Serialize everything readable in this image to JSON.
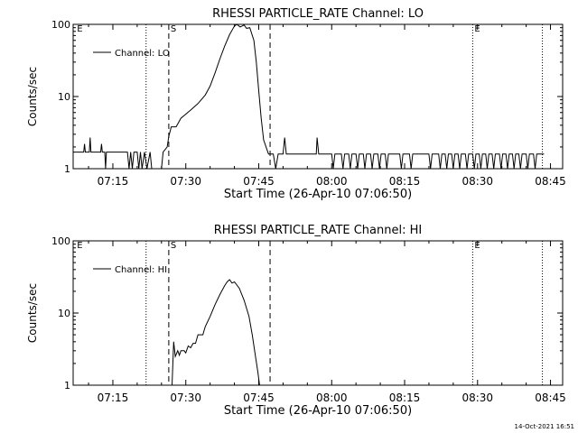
{
  "footer_timestamp": "14-Oct-2021 16:51",
  "chart_data": [
    {
      "type": "line",
      "title": "RHESSI PARTICLE_RATE Channel: LO",
      "xlabel": "Start Time (26-Apr-10 07:06:50)",
      "ylabel": "Counts/sec",
      "yscale": "log",
      "ylim": [
        1,
        100
      ],
      "ytick_labels": [
        "1",
        "10",
        "100"
      ],
      "xlim": [
        "07:06:50",
        "08:47:30"
      ],
      "xtick_labels": [
        "07:15",
        "07:30",
        "07:45",
        "08:00",
        "08:15",
        "08:30",
        "08:45"
      ],
      "legend": {
        "position": "top-left",
        "entries": [
          "Channel: LO"
        ]
      },
      "grid": false,
      "markers": [
        {
          "time": "07:08:00",
          "style": "label",
          "label": "E"
        },
        {
          "time": "07:21:50",
          "style": "dotted",
          "label": ""
        },
        {
          "time": "07:26:30",
          "style": "dashed",
          "label": "S"
        },
        {
          "time": "07:47:20",
          "style": "dashed",
          "label": ""
        },
        {
          "time": "08:29:00",
          "style": "dotted",
          "label": "E"
        },
        {
          "time": "08:43:20",
          "style": "dotted",
          "label": ""
        }
      ],
      "series": [
        {
          "name": "Channel: LO",
          "points": [
            [
              "07:06:50",
              1.7
            ],
            [
              "07:09:00",
              1.7
            ],
            [
              "07:09:10",
              2.2
            ],
            [
              "07:09:20",
              1.7
            ],
            [
              "07:10:10",
              1.7
            ],
            [
              "07:10:20",
              2.7
            ],
            [
              "07:10:30",
              1.7
            ],
            [
              "07:12:30",
              1.7
            ],
            [
              "07:12:40",
              2.2
            ],
            [
              "07:12:50",
              1.7
            ],
            [
              "07:13:20",
              1.7
            ],
            [
              "07:13:30",
              1.0
            ],
            [
              "07:13:40",
              1.7
            ],
            [
              "07:18:00",
              1.7
            ],
            [
              "07:18:20",
              1.0
            ],
            [
              "07:18:40",
              1.7
            ],
            [
              "07:19:00",
              1.0
            ],
            [
              "07:19:20",
              1.7
            ],
            [
              "07:20:00",
              1.7
            ],
            [
              "07:20:20",
              1.0
            ],
            [
              "07:20:40",
              1.7
            ],
            [
              "07:21:00",
              1.0
            ],
            [
              "07:21:30",
              1.7
            ],
            [
              "07:22:00",
              1.0
            ],
            [
              "07:22:40",
              1.7
            ],
            [
              "07:23:00",
              1.0
            ],
            [
              "07:25:00",
              1.0
            ],
            [
              "07:25:20",
              1.7
            ],
            [
              "07:26:10",
              2.0
            ],
            [
              "07:26:30",
              2.8
            ],
            [
              "07:27:00",
              3.8
            ],
            [
              "07:28:00",
              3.8
            ],
            [
              "07:29:00",
              5.0
            ],
            [
              "07:31:00",
              6.5
            ],
            [
              "07:32:30",
              8.0
            ],
            [
              "07:34:00",
              10.5
            ],
            [
              "07:35:00",
              14
            ],
            [
              "07:36:00",
              21
            ],
            [
              "07:37:00",
              33
            ],
            [
              "07:38:00",
              50
            ],
            [
              "07:39:00",
              72
            ],
            [
              "07:40:00",
              95
            ],
            [
              "07:40:30",
              100
            ],
            [
              "07:41:10",
              92
            ],
            [
              "07:42:00",
              98
            ],
            [
              "07:42:30",
              88
            ],
            [
              "07:43:10",
              90
            ],
            [
              "07:44:00",
              60
            ],
            [
              "07:44:30",
              30
            ],
            [
              "07:45:00",
              12
            ],
            [
              "07:45:30",
              5
            ],
            [
              "07:46:00",
              2.5
            ],
            [
              "07:46:30",
              2.0
            ],
            [
              "07:47:00",
              1.6
            ],
            [
              "07:47:30",
              1.6
            ],
            [
              "07:48:00",
              1.6
            ],
            [
              "07:48:30",
              1.0
            ],
            [
              "07:49:00",
              1.6
            ],
            [
              "07:50:00",
              1.6
            ],
            [
              "07:50:20",
              2.7
            ],
            [
              "07:50:40",
              1.6
            ],
            [
              "07:56:50",
              1.6
            ],
            [
              "07:57:00",
              2.7
            ],
            [
              "07:57:20",
              1.6
            ],
            [
              "08:00:00",
              1.6
            ],
            [
              "08:00:20",
              1.0
            ],
            [
              "08:00:40",
              1.6
            ],
            [
              "08:02:00",
              1.6
            ],
            [
              "08:02:20",
              1.0
            ],
            [
              "08:02:40",
              1.6
            ],
            [
              "08:03:30",
              1.6
            ],
            [
              "08:03:50",
              1.0
            ],
            [
              "08:04:10",
              1.6
            ],
            [
              "08:05:00",
              1.6
            ],
            [
              "08:05:20",
              1.0
            ],
            [
              "08:05:40",
              1.6
            ],
            [
              "08:06:30",
              1.6
            ],
            [
              "08:06:50",
              1.0
            ],
            [
              "08:07:10",
              1.6
            ],
            [
              "08:08:00",
              1.6
            ],
            [
              "08:08:20",
              1.0
            ],
            [
              "08:08:40",
              1.6
            ],
            [
              "08:09:30",
              1.6
            ],
            [
              "08:09:50",
              1.0
            ],
            [
              "08:10:10",
              1.6
            ],
            [
              "08:11:00",
              1.6
            ],
            [
              "08:11:20",
              1.0
            ],
            [
              "08:11:40",
              1.6
            ],
            [
              "08:14:00",
              1.6
            ],
            [
              "08:14:20",
              1.0
            ],
            [
              "08:14:40",
              1.6
            ],
            [
              "08:16:00",
              1.6
            ],
            [
              "08:16:20",
              1.0
            ],
            [
              "08:16:40",
              1.6
            ],
            [
              "08:20:00",
              1.6
            ],
            [
              "08:20:20",
              1.0
            ],
            [
              "08:20:40",
              1.6
            ],
            [
              "08:22:00",
              1.6
            ],
            [
              "08:22:20",
              1.0
            ],
            [
              "08:22:40",
              1.6
            ],
            [
              "08:23:20",
              1.6
            ],
            [
              "08:23:40",
              1.0
            ],
            [
              "08:24:00",
              1.6
            ],
            [
              "08:24:40",
              1.6
            ],
            [
              "08:25:00",
              1.0
            ],
            [
              "08:25:20",
              1.6
            ],
            [
              "08:26:00",
              1.6
            ],
            [
              "08:26:20",
              1.0
            ],
            [
              "08:26:40",
              1.6
            ],
            [
              "08:27:30",
              1.6
            ],
            [
              "08:27:50",
              1.0
            ],
            [
              "08:28:10",
              1.6
            ],
            [
              "08:29:00",
              1.6
            ],
            [
              "08:29:20",
              1.0
            ],
            [
              "08:29:40",
              1.6
            ],
            [
              "08:30:20",
              1.6
            ],
            [
              "08:30:40",
              1.0
            ],
            [
              "08:31:00",
              1.6
            ],
            [
              "08:31:40",
              1.6
            ],
            [
              "08:32:00",
              1.0
            ],
            [
              "08:32:20",
              1.6
            ],
            [
              "08:33:00",
              1.6
            ],
            [
              "08:33:20",
              1.0
            ],
            [
              "08:33:40",
              1.6
            ],
            [
              "08:34:30",
              1.6
            ],
            [
              "08:34:50",
              1.0
            ],
            [
              "08:35:10",
              1.6
            ],
            [
              "08:35:50",
              1.6
            ],
            [
              "08:36:10",
              1.0
            ],
            [
              "08:36:30",
              1.6
            ],
            [
              "08:37:10",
              1.6
            ],
            [
              "08:37:30",
              1.0
            ],
            [
              "08:37:50",
              1.6
            ],
            [
              "08:38:30",
              1.6
            ],
            [
              "08:38:50",
              1.0
            ],
            [
              "08:39:10",
              1.6
            ],
            [
              "08:40:00",
              1.6
            ],
            [
              "08:40:20",
              1.0
            ],
            [
              "08:40:40",
              1.6
            ],
            [
              "08:41:30",
              1.6
            ],
            [
              "08:41:50",
              1.0
            ],
            [
              "08:42:10",
              1.6
            ],
            [
              "08:43:40",
              1.6
            ]
          ]
        }
      ]
    },
    {
      "type": "line",
      "title": "RHESSI PARTICLE_RATE Channel: HI",
      "xlabel": "Start Time (26-Apr-10 07:06:50)",
      "ylabel": "Counts/sec",
      "yscale": "log",
      "ylim": [
        1,
        100
      ],
      "ytick_labels": [
        "1",
        "10",
        "100"
      ],
      "xlim": [
        "07:06:50",
        "08:47:30"
      ],
      "xtick_labels": [
        "07:15",
        "07:30",
        "07:45",
        "08:00",
        "08:15",
        "08:30",
        "08:45"
      ],
      "legend": {
        "position": "top-left",
        "entries": [
          "Channel: HI"
        ]
      },
      "grid": false,
      "markers": [
        {
          "time": "07:08:00",
          "style": "label",
          "label": "E"
        },
        {
          "time": "07:21:50",
          "style": "dotted",
          "label": ""
        },
        {
          "time": "07:26:30",
          "style": "dashed",
          "label": "S"
        },
        {
          "time": "07:47:20",
          "style": "dashed",
          "label": ""
        },
        {
          "time": "08:29:00",
          "style": "dotted",
          "label": "E"
        },
        {
          "time": "08:43:20",
          "style": "dotted",
          "label": ""
        }
      ],
      "series": [
        {
          "name": "Channel: HI",
          "points": [
            [
              "07:27:10",
              1.0
            ],
            [
              "07:27:30",
              4.0
            ],
            [
              "07:27:50",
              2.5
            ],
            [
              "07:28:20",
              3.0
            ],
            [
              "07:28:40",
              2.6
            ],
            [
              "07:29:00",
              3.0
            ],
            [
              "07:29:40",
              3.0
            ],
            [
              "07:30:00",
              2.8
            ],
            [
              "07:30:30",
              3.5
            ],
            [
              "07:31:00",
              3.3
            ],
            [
              "07:31:30",
              3.8
            ],
            [
              "07:32:00",
              3.8
            ],
            [
              "07:32:30",
              5.0
            ],
            [
              "07:33:30",
              5.0
            ],
            [
              "07:34:00",
              6.5
            ],
            [
              "07:35:00",
              9
            ],
            [
              "07:36:00",
              13
            ],
            [
              "07:37:00",
              18
            ],
            [
              "07:38:00",
              24
            ],
            [
              "07:38:30",
              27
            ],
            [
              "07:39:00",
              29
            ],
            [
              "07:39:30",
              26
            ],
            [
              "07:40:00",
              27
            ],
            [
              "07:41:00",
              22
            ],
            [
              "07:42:00",
              15
            ],
            [
              "07:43:00",
              9
            ],
            [
              "07:43:40",
              5
            ],
            [
              "07:44:20",
              2.5
            ],
            [
              "07:44:50",
              1.5
            ],
            [
              "07:45:10",
              1.0
            ]
          ]
        }
      ]
    }
  ]
}
